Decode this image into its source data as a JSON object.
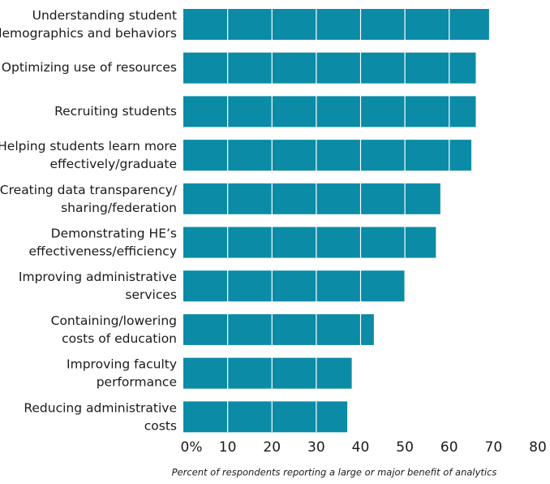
{
  "chart_data": {
    "type": "bar",
    "orientation": "horizontal",
    "x_label": "Percent of respondents reporting a large or major benefit of analytics",
    "categories": [
      "Understanding student\ndemographics and behaviors",
      "Optimizing use of resources",
      "Recruiting students",
      "Helping students learn more\neffectively/graduate",
      "Creating data transparency/\nsharing/federation",
      "Demonstrating HE’s\neffectiveness/efficiency",
      "Improving administrative\nservices",
      "Containing/lowering\ncosts of education",
      "Improving faculty\nperformance",
      "Reducing administrative\ncosts"
    ],
    "values": [
      69,
      66,
      66,
      65,
      58,
      57,
      50,
      43,
      38,
      37
    ],
    "color": "#0b8ba6",
    "xlim": [
      0,
      80
    ],
    "xticks": [
      {
        "value": 0,
        "label": "0%"
      },
      10,
      20,
      30,
      40,
      50,
      60,
      70,
      80
    ],
    "grid": true
  }
}
